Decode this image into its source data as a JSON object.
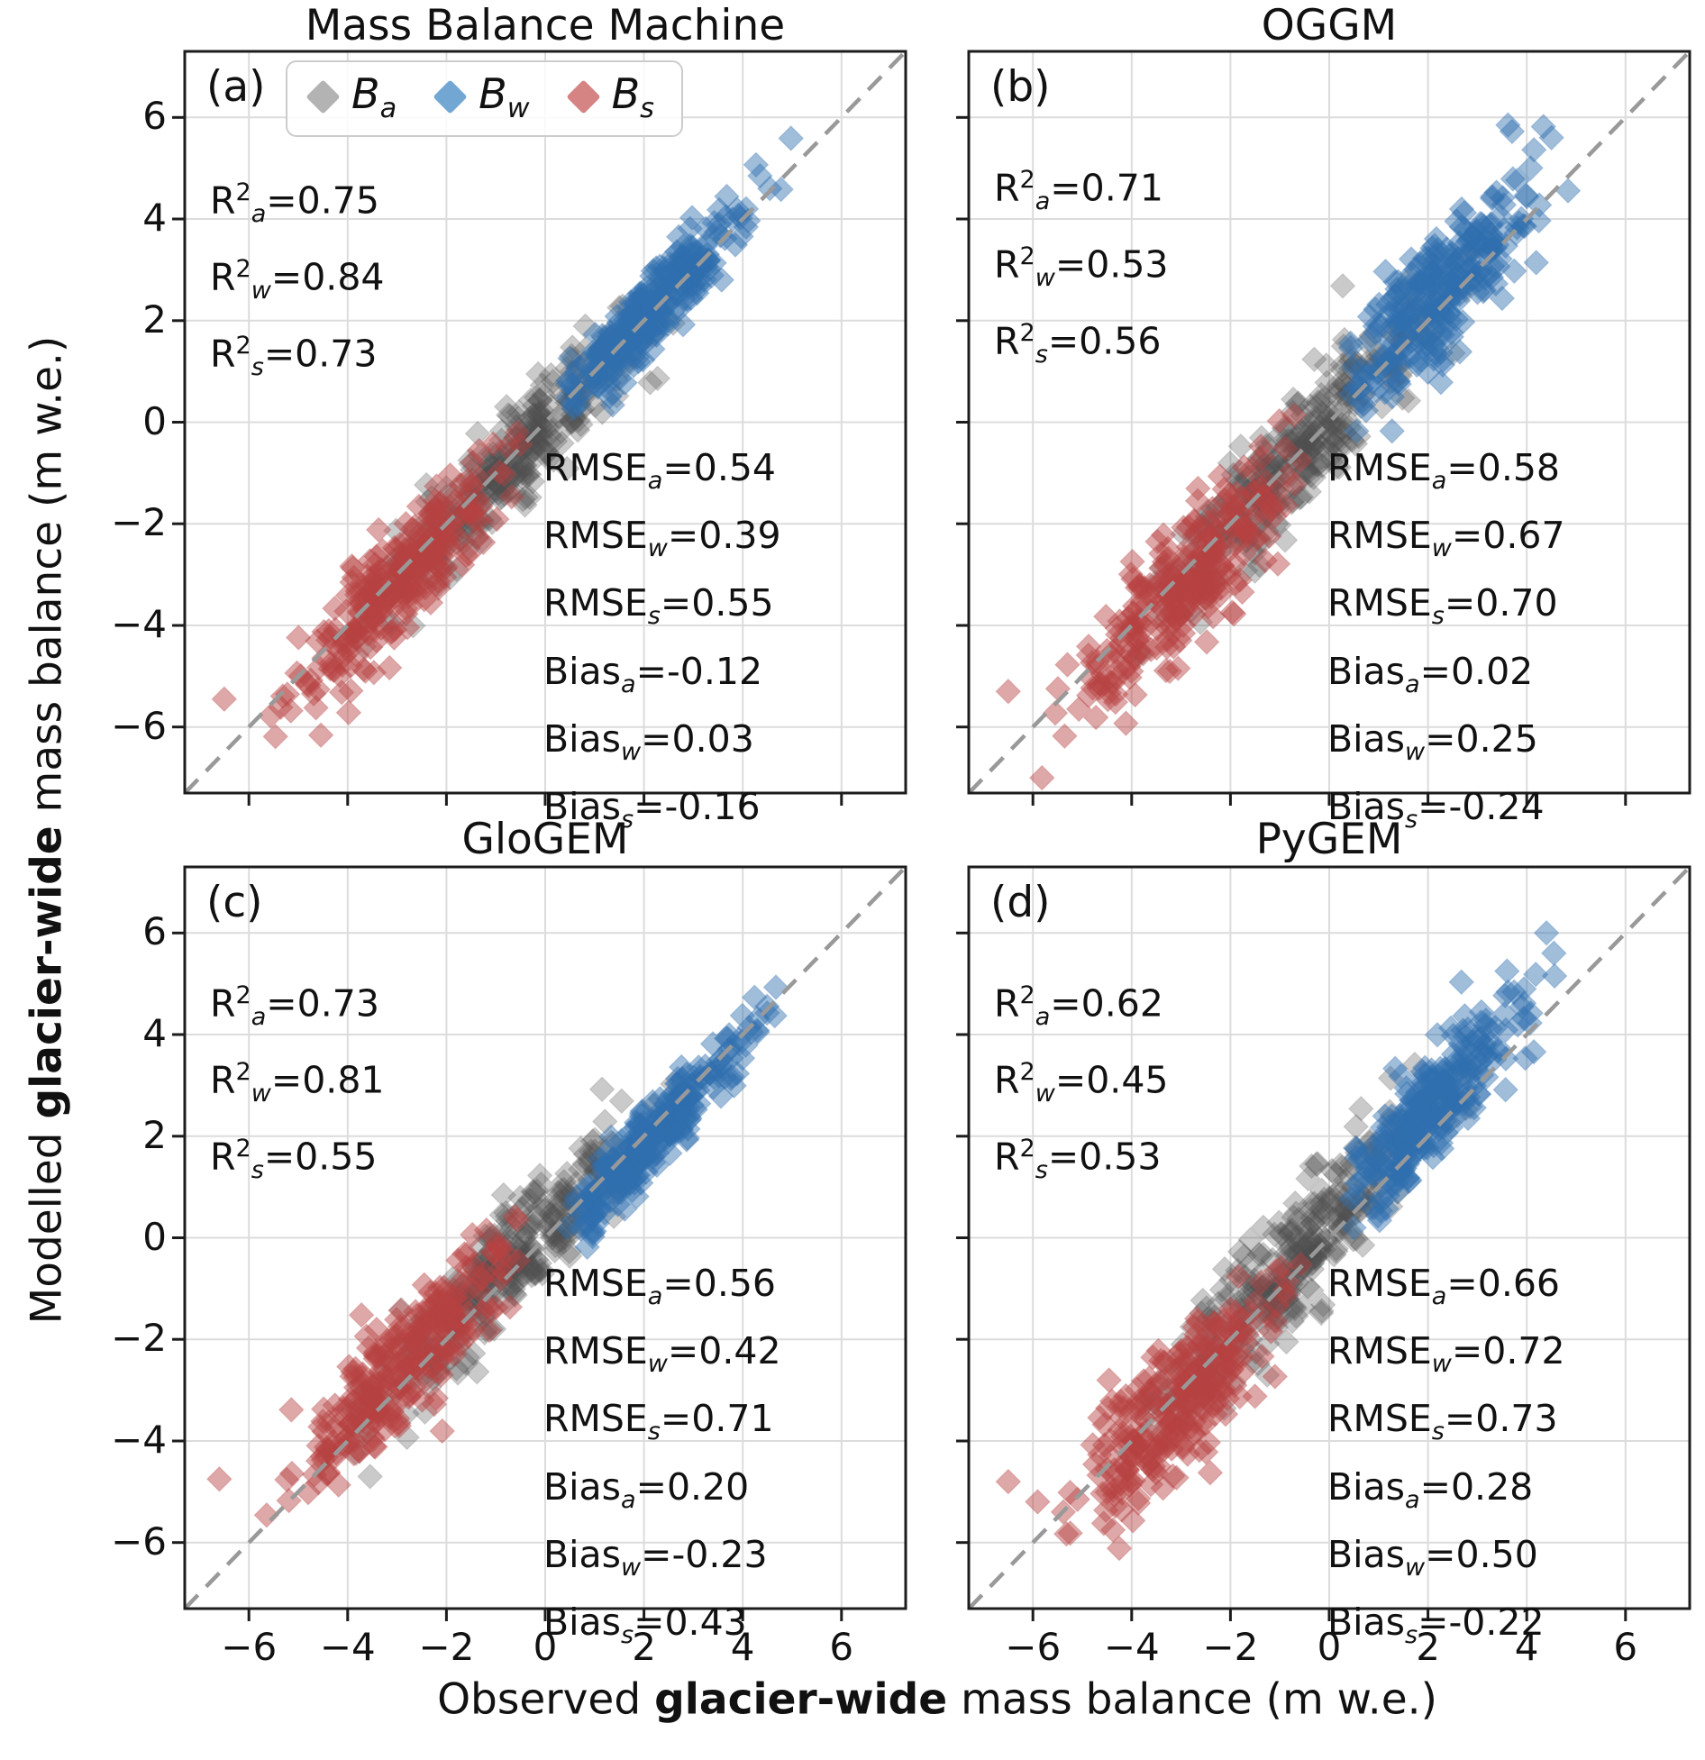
{
  "figure": {
    "y_label_parts": [
      "Modelled ",
      "glacier-wide",
      " mass balance (m w.e.)"
    ],
    "x_label_parts": [
      "Observed ",
      "glacier-wide",
      " mass balance (m w.e.)"
    ],
    "colors": {
      "series": {
        "a": "#4f4f4f",
        "w": "#2f6fae",
        "s": "#b84242"
      },
      "opacity": {
        "a": 0.3,
        "w": 0.46,
        "s": 0.46
      },
      "legend": {
        "a": "#b3b3b3",
        "w": "#72a6d3",
        "s": "#d58383"
      },
      "diagonal": "#999999",
      "grid": "#dcdcdc",
      "frame": "#1c1c1c"
    },
    "legend_items": [
      {
        "base": "B",
        "sub": "a",
        "season": "a"
      },
      {
        "base": "B",
        "sub": "w",
        "season": "w"
      },
      {
        "base": "B",
        "sub": "s",
        "season": "s"
      }
    ],
    "stat_labels": {
      "r2_base": "R",
      "r2_sup": "2",
      "rmse_base": "RMSE",
      "bias_base": "Bias",
      "equals": "="
    }
  },
  "chart_data": {
    "type": "scatter",
    "x_label": "Observed glacier-wide mass balance (m w.e.)",
    "y_label": "Modelled glacier-wide mass balance (m w.e.)",
    "axes": {
      "x_range": [
        -7.3,
        7.3
      ],
      "y_range": [
        -7.3,
        7.3
      ],
      "ticks": [
        -6,
        -4,
        -2,
        0,
        2,
        4,
        6
      ]
    },
    "legend": [
      "Ba (annual balance, grey)",
      "Bw (winter balance, blue)",
      "Bs (summer balance, red)"
    ],
    "panels": [
      {
        "id": "a",
        "label": "(a)",
        "title": "Mass Balance Machine",
        "r2": {
          "a": "0.75",
          "w": "0.84",
          "s": "0.73"
        },
        "rmse": {
          "a": "0.54",
          "w": "0.39",
          "s": "0.55"
        },
        "bias": {
          "a": "-0.12",
          "w": "0.03",
          "s": "-0.16"
        },
        "series": {
          "a": {
            "n": 320,
            "mu": -0.7,
            "sigma": 1.25,
            "range": [
              -3.9,
              2.9
            ],
            "extra": []
          },
          "w": {
            "n": 280,
            "mu": 2.1,
            "sigma": 0.95,
            "range": [
              0.4,
              5.0
            ],
            "extra": [
              [
                4.35,
                4.85
              ],
              [
                4.55,
                4.6
              ]
            ]
          },
          "s": {
            "n": 280,
            "mu": -3.0,
            "sigma": 1.05,
            "range": [
              -6.2,
              -0.45
            ],
            "extra": [
              [
                -6.5,
                -5.45
              ]
            ]
          }
        }
      },
      {
        "id": "b",
        "label": "(b)",
        "title": "OGGM",
        "r2": {
          "a": "0.71",
          "w": "0.53",
          "s": "0.56"
        },
        "rmse": {
          "a": "0.58",
          "w": "0.67",
          "s": "0.70"
        },
        "bias": {
          "a": "0.02",
          "w": "0.25",
          "s": "-0.24"
        },
        "series": {
          "a": {
            "n": 320,
            "mu": -0.7,
            "sigma": 1.25,
            "range": [
              -3.9,
              2.9
            ],
            "extra": []
          },
          "w": {
            "n": 280,
            "mu": 2.1,
            "sigma": 0.95,
            "range": [
              0.4,
              5.0
            ],
            "extra": [
              [
                3.62,
                5.85
              ],
              [
                4.5,
                5.6
              ]
            ]
          },
          "s": {
            "n": 280,
            "mu": -3.0,
            "sigma": 1.05,
            "range": [
              -6.2,
              -0.45
            ],
            "extra": [
              [
                -6.5,
                -5.3
              ]
            ]
          }
        }
      },
      {
        "id": "c",
        "label": "(c)",
        "title": "GloGEM",
        "r2": {
          "a": "0.73",
          "w": "0.81",
          "s": "0.55"
        },
        "rmse": {
          "a": "0.56",
          "w": "0.42",
          "s": "0.71"
        },
        "bias": {
          "a": "0.20",
          "w": "-0.23",
          "s": "0.43"
        },
        "series": {
          "a": {
            "n": 320,
            "mu": -0.7,
            "sigma": 1.25,
            "range": [
              -3.9,
              2.9
            ],
            "extra": []
          },
          "w": {
            "n": 280,
            "mu": 2.1,
            "sigma": 0.95,
            "range": [
              0.4,
              5.0
            ],
            "extra": [
              [
                4.3,
                4.05
              ]
            ]
          },
          "s": {
            "n": 280,
            "mu": -2.9,
            "sigma": 1.05,
            "range": [
              -6.2,
              -0.45
            ],
            "extra": [
              [
                -6.6,
                -4.75
              ]
            ]
          }
        }
      },
      {
        "id": "d",
        "label": "(d)",
        "title": "PyGEM",
        "r2": {
          "a": "0.62",
          "w": "0.45",
          "s": "0.53"
        },
        "rmse": {
          "a": "0.66",
          "w": "0.72",
          "s": "0.73"
        },
        "bias": {
          "a": "0.28",
          "w": "0.50",
          "s": "-0.22"
        },
        "series": {
          "a": {
            "n": 320,
            "mu": -0.8,
            "sigma": 1.25,
            "range": [
              -3.9,
              2.9
            ],
            "extra": []
          },
          "w": {
            "n": 280,
            "mu": 2.1,
            "sigma": 0.95,
            "range": [
              0.4,
              5.0
            ],
            "extra": [
              [
                4.4,
                6.0
              ],
              [
                3.6,
                5.25
              ],
              [
                4.55,
                5.6
              ]
            ]
          },
          "s": {
            "n": 280,
            "mu": -3.0,
            "sigma": 1.05,
            "range": [
              -6.2,
              -0.45
            ],
            "extra": [
              [
                -6.5,
                -4.8
              ]
            ]
          }
        }
      }
    ]
  }
}
